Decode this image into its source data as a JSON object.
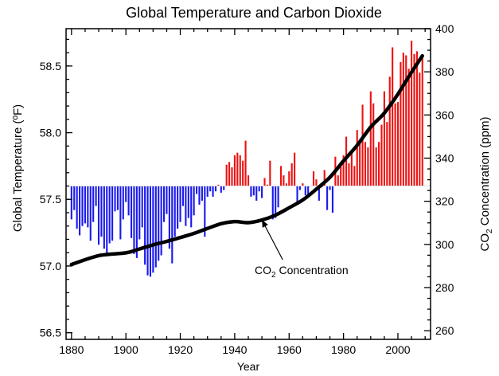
{
  "chart_data": {
    "type": "bar",
    "title": "Global Temperature and Carbon Dioxide",
    "xlabel": "Year",
    "ylabel_left": "Global Temperature (ºF)",
    "ylabel_right_prefix": "CO",
    "ylabel_right_sub": "2",
    "ylabel_right_suffix": " Concentration (ppm)",
    "baseline_temp": 57.6,
    "xlim": [
      1878,
      2012
    ],
    "ylim_left": [
      56.45,
      58.78
    ],
    "ylim_right": [
      256,
      400
    ],
    "x_ticks": [
      1880,
      1900,
      1920,
      1940,
      1960,
      1980,
      2000
    ],
    "y_ticks_left": [
      56.5,
      57.0,
      57.5,
      58.0,
      58.5
    ],
    "y_tick_labels_left": [
      "56.5",
      "57.0",
      "57.5",
      "58.0",
      "58.5"
    ],
    "y_ticks_right": [
      260,
      280,
      300,
      320,
      340,
      360,
      380,
      400
    ],
    "colors": {
      "above": "#ee1111",
      "below": "#1a1aee",
      "line": "#000000"
    },
    "temperature_series": {
      "name": "Global Temperature",
      "start_year": 1880,
      "values": [
        57.35,
        57.42,
        57.28,
        57.23,
        57.3,
        57.32,
        57.29,
        57.19,
        57.33,
        57.45,
        57.16,
        57.22,
        57.13,
        57.08,
        57.17,
        57.19,
        57.41,
        57.42,
        57.2,
        57.35,
        57.48,
        57.38,
        57.21,
        57.09,
        57.06,
        57.2,
        57.29,
        57.01,
        56.93,
        56.92,
        56.95,
        56.99,
        57.04,
        57.08,
        57.33,
        57.39,
        57.13,
        57.02,
        57.22,
        57.28,
        57.33,
        57.45,
        57.3,
        57.36,
        57.29,
        57.38,
        57.54,
        57.46,
        57.49,
        57.22,
        57.52,
        57.56,
        57.52,
        57.56,
        57.61,
        57.55,
        57.57,
        57.76,
        57.78,
        57.74,
        57.83,
        57.85,
        57.83,
        57.79,
        57.94,
        57.68,
        57.52,
        57.53,
        57.49,
        57.56,
        57.51,
        57.66,
        57.61,
        57.79,
        57.35,
        57.36,
        57.44,
        57.75,
        57.68,
        57.62,
        57.71,
        57.77,
        57.85,
        57.48,
        57.57,
        57.62,
        57.53,
        57.54,
        57.6,
        57.71,
        57.65,
        57.49,
        57.59,
        57.72,
        57.42,
        57.57,
        57.4,
        57.82,
        57.68,
        57.75,
        57.83,
        57.97,
        57.77,
        57.86,
        57.75,
        58.02,
        57.92,
        58.21,
        57.93,
        57.89,
        58.31,
        58.22,
        57.89,
        57.93,
        58.06,
        58.31,
        58.08,
        58.42,
        58.64,
        58.22,
        58.23,
        58.53,
        58.6,
        58.58,
        58.48,
        58.69,
        58.59,
        58.61,
        58.45,
        58.58
      ]
    },
    "co2_series": {
      "name": "CO2 Concentration",
      "x": [
        1880,
        1890,
        1900,
        1905,
        1910,
        1915,
        1920,
        1925,
        1930,
        1935,
        1940,
        1945,
        1950,
        1955,
        1960,
        1965,
        1970,
        1975,
        1980,
        1985,
        1990,
        1995,
        2000,
        2005,
        2009
      ],
      "y": [
        290.7,
        294.8,
        296.1,
        297.9,
        299.8,
        301.4,
        303.2,
        305.1,
        307.4,
        309.6,
        310.6,
        310.1,
        311.3,
        313.6,
        317.0,
        320.6,
        325.6,
        331.1,
        338.7,
        345.9,
        354.4,
        360.9,
        369.7,
        379.8,
        387.4
      ]
    },
    "annotation": {
      "prefix": "CO",
      "sub": "2",
      "suffix": " Concentration",
      "points_to_year": 1955
    }
  }
}
